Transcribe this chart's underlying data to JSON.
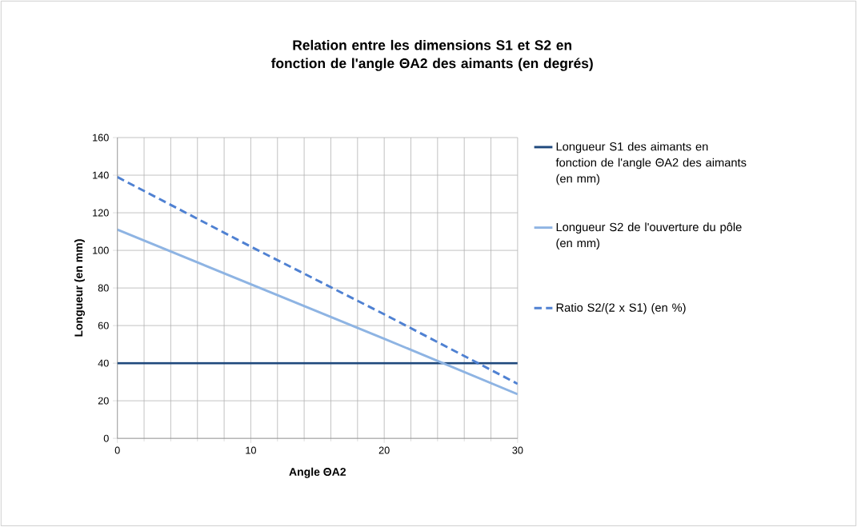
{
  "chart_data": {
    "type": "line",
    "title": "Relation entre les dimensions S1 et S2 en fonction de l'angle ΘA2 des aimants (en degrés)",
    "xlabel": "Angle ΘA2",
    "ylabel": "Longueur (en mm)",
    "x": [
      0,
      10,
      20,
      30
    ],
    "series": [
      {
        "name": "Longueur S1 des aimants en fonction de l'angle ΘA2 des aimants (en mm)",
        "color": "#1f497d",
        "values": [
          40,
          40,
          40,
          40
        ]
      },
      {
        "name": "Longueur S2 de l'ouverture du pôle (en mm)",
        "color": "#8eb4e3",
        "values": [
          111,
          82,
          53,
          23.5
        ]
      },
      {
        "name": "Ratio S2/(2 x S1) (en %)",
        "color": "#4f81d2",
        "values": [
          139,
          102,
          66,
          29
        ],
        "line_style": "dashed"
      }
    ],
    "xlim": [
      0,
      30
    ],
    "xticks": [
      0,
      10,
      20,
      30
    ],
    "ylim": [
      0,
      160
    ],
    "yticks": [
      0,
      20,
      40,
      60,
      80,
      100,
      120,
      140,
      160
    ],
    "grid": true,
    "legend": "right",
    "marker": "none",
    "line_style": "solid"
  }
}
